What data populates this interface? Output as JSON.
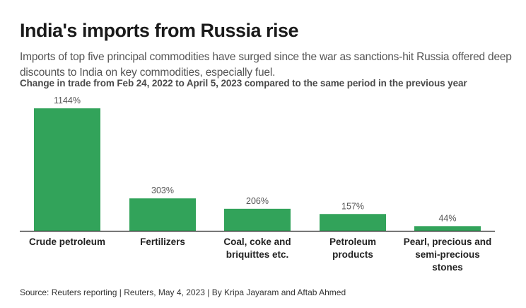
{
  "header": {
    "title": "India's imports from Russia rise",
    "subtitle": "Imports of top five principal commodities have surged since the war as sanctions-hit Russia offered deep discounts to India on key commodities, especially fuel.",
    "chart_label": "Change in trade from Feb 24, 2022 to April 5, 2023 compared to the same period in the previous year"
  },
  "footer": {
    "source": "Source: Reuters reporting | Reuters, May 4, 2023 | By Kripa Jayaram and Aftab Ahmed"
  },
  "colors": {
    "bar": "#32a35a",
    "axis": "#222222"
  },
  "chart_data": {
    "type": "bar",
    "title": "India's imports from Russia rise",
    "subtitle": "Change in trade from Feb 24, 2022 to April 5, 2023 compared to the same period in the previous year",
    "categories": [
      [
        "Crude petroleum"
      ],
      [
        "Fertilizers"
      ],
      [
        "Coal, coke and",
        "briquittes etc."
      ],
      [
        "Petroleum",
        "products"
      ],
      [
        "Pearl, precious and",
        "semi-precious",
        "stones"
      ]
    ],
    "values": [
      1144,
      303,
      206,
      157,
      44
    ],
    "value_labels": [
      "1144%",
      "303%",
      "206%",
      "157%",
      "44%"
    ],
    "unit": "%",
    "xlabel": "",
    "ylabel": "",
    "ylim": [
      0,
      1144
    ],
    "grid": false,
    "legend": "none"
  }
}
